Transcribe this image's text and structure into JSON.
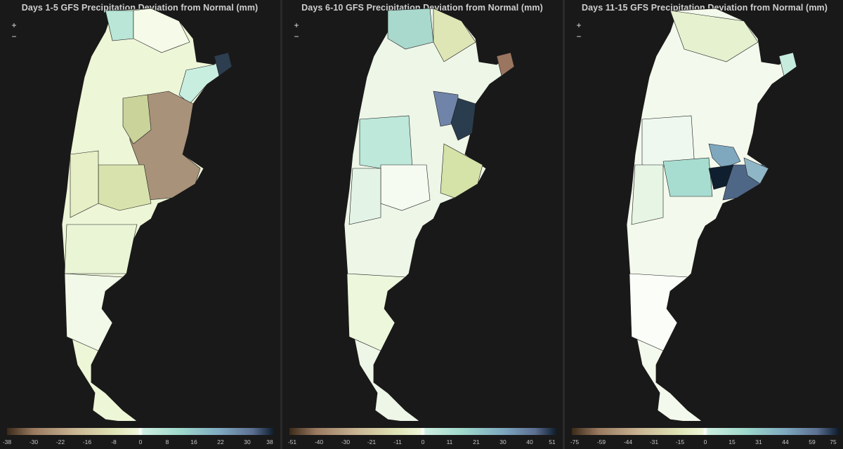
{
  "panels": [
    {
      "title": "Days 1-5 GFS Precipitation Deviation from Normal (mm)",
      "zoom_in": "+",
      "zoom_out": "−",
      "legend_ticks": [
        "-38",
        "-30",
        "-22",
        "-16",
        "-8",
        "0",
        "8",
        "16",
        "22",
        "30",
        "38"
      ]
    },
    {
      "title": "Days 6-10 GFS Precipitation Deviation from Normal (mm)",
      "zoom_in": "+",
      "zoom_out": "−",
      "legend_ticks": [
        "-51",
        "-40",
        "-30",
        "-21",
        "-11",
        "0",
        "11",
        "21",
        "30",
        "40",
        "51"
      ]
    },
    {
      "title": "Days 11-15 GFS Precipitation Deviation from Normal (mm)",
      "zoom_in": "+",
      "zoom_out": "−",
      "legend_ticks": [
        "-75",
        "-59",
        "-44",
        "-31",
        "-15",
        "0",
        "15",
        "31",
        "44",
        "59",
        "75"
      ]
    }
  ],
  "colors": {
    "background": "#1b1a1a",
    "scale": [
      "#3b2a1a",
      "#9a7a60",
      "#c9b493",
      "#dfe4b5",
      "#eef6d8",
      "#ffffff",
      "#cdeee0",
      "#9fd9cc",
      "#7ea9c0",
      "#5c6f92",
      "#0c1c2c"
    ],
    "border": "#1a1a1a"
  }
}
